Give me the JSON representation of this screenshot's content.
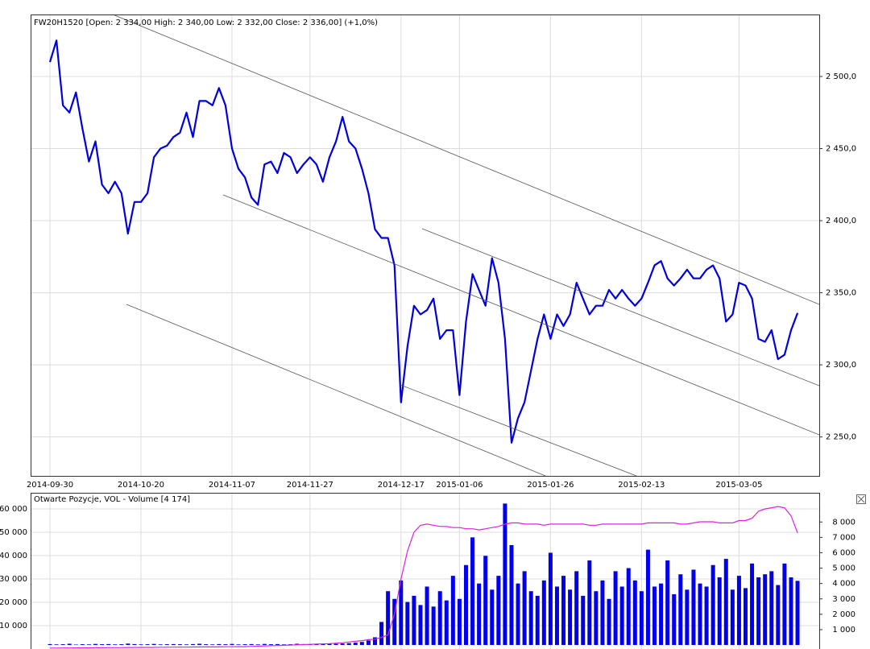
{
  "chart_data": [
    {
      "type": "line",
      "title": "FW20H1520 [Open: 2 334,00  High: 2 340,00  Low: 2 332,00  Close: 2 336,00] (+1,0%)",
      "categories": [
        "2014-09-30",
        null,
        null,
        null,
        null,
        null,
        null,
        null,
        null,
        null,
        null,
        null,
        null,
        null,
        "2014-10-20",
        null,
        null,
        null,
        null,
        null,
        null,
        null,
        null,
        null,
        null,
        null,
        null,
        null,
        "2014-11-07",
        null,
        null,
        null,
        null,
        null,
        null,
        null,
        null,
        null,
        null,
        null,
        "2014-11-27",
        null,
        null,
        null,
        null,
        null,
        null,
        null,
        null,
        null,
        null,
        null,
        null,
        null,
        "2014-12-17",
        null,
        null,
        null,
        null,
        null,
        null,
        null,
        null,
        "2015-01-06",
        null,
        null,
        null,
        null,
        null,
        null,
        null,
        null,
        null,
        null,
        null,
        null,
        null,
        "2015-01-26",
        null,
        null,
        null,
        null,
        null,
        null,
        null,
        null,
        null,
        null,
        null,
        null,
        null,
        "2015-02-13",
        null,
        null,
        null,
        null,
        null,
        null,
        null,
        null,
        null,
        null,
        null,
        null,
        null,
        null,
        "2015-03-05",
        null,
        null,
        null,
        null,
        null,
        null,
        null,
        null,
        null
      ],
      "series": [
        {
          "name": "FW20H1520",
          "color": "#0000dd",
          "values": [
            2510,
            2525,
            2480,
            2475,
            2489,
            2464,
            2441,
            2455,
            2425,
            2419,
            2427,
            2419,
            2391,
            2413,
            2413,
            2419,
            2444,
            2450,
            2452,
            2458,
            2461,
            2475,
            2458,
            2483,
            2483,
            2480,
            2492,
            2480,
            2450,
            2436,
            2430,
            2416,
            2411,
            2439,
            2441,
            2433,
            2447,
            2444,
            2433,
            2439,
            2444,
            2439,
            2427,
            2444,
            2455,
            2472,
            2455,
            2450,
            2436,
            2419,
            2394,
            2388,
            2388,
            2369,
            2274,
            2313,
            2341,
            2335,
            2338,
            2346,
            2318,
            2324,
            2324,
            2279,
            2330,
            2363,
            2352,
            2341,
            2374,
            2357,
            2318,
            2246,
            2263,
            2274,
            2296,
            2318,
            2335,
            2318,
            2335,
            2327,
            2335,
            2357,
            2346,
            2335,
            2341,
            2341,
            2352,
            2346,
            2352,
            2346,
            2341,
            2346,
            2357,
            2369,
            2372,
            2360,
            2355,
            2360,
            2366,
            2360,
            2360,
            2366,
            2369,
            2360,
            2330,
            2335,
            2357,
            2355,
            2346,
            2318,
            2316,
            2324,
            2304,
            2307,
            2324,
            2336
          ]
        }
      ],
      "ylim": [
        2223,
        2543
      ],
      "yticks": [
        {
          "value": 2250,
          "label": "2 250,0"
        },
        {
          "value": 2300,
          "label": "2 300,0"
        },
        {
          "value": 2350,
          "label": "2 350,0"
        },
        {
          "value": 2400,
          "label": "2 400,0"
        },
        {
          "value": 2450,
          "label": "2 450,0"
        },
        {
          "value": 2500,
          "label": "2 500,0"
        }
      ],
      "grid": true
    },
    {
      "type": "bar",
      "title": "Otwarte Pozycje, VOL - Volume [4 174]",
      "series": [
        {
          "name": "Otwarte Pozycje",
          "type": "line",
          "axis": "y",
          "color": "#dd22dd",
          "values": [
            400,
            400,
            450,
            450,
            500,
            500,
            500,
            550,
            550,
            600,
            600,
            600,
            650,
            650,
            700,
            700,
            700,
            750,
            750,
            800,
            800,
            800,
            850,
            850,
            900,
            900,
            900,
            950,
            950,
            1000,
            1000,
            1100,
            1200,
            1300,
            1400,
            1500,
            1600,
            1700,
            1800,
            1900,
            2000,
            2100,
            2200,
            2300,
            2500,
            2700,
            3000,
            3300,
            3600,
            4000,
            4200,
            5000,
            6000,
            15000,
            30000,
            42000,
            50000,
            53000,
            53500,
            53000,
            52500,
            52500,
            52000,
            52000,
            51500,
            51500,
            51000,
            51500,
            52000,
            52500,
            53500,
            54000,
            54000,
            53500,
            53500,
            53500,
            53000,
            53500,
            53500,
            53500,
            53500,
            53500,
            53500,
            53000,
            53000,
            53500,
            53500,
            53500,
            53500,
            53500,
            53500,
            53500,
            54000,
            54000,
            54000,
            54000,
            54000,
            53500,
            53500,
            54000,
            54500,
            54500,
            54500,
            54000,
            54000,
            54000,
            55000,
            55000,
            56000,
            59000,
            60000,
            60500,
            61000,
            60500,
            57000,
            49700
          ]
        },
        {
          "name": "VOL - Volume",
          "type": "bar",
          "axis": "y2",
          "color": "#0000ee",
          "values": [
            60,
            40,
            50,
            80,
            30,
            50,
            40,
            70,
            50,
            60,
            40,
            50,
            90,
            60,
            40,
            50,
            70,
            40,
            50,
            60,
            50,
            40,
            60,
            80,
            50,
            40,
            60,
            50,
            70,
            40,
            50,
            60,
            40,
            70,
            50,
            60,
            40,
            50,
            80,
            60,
            50,
            70,
            60,
            90,
            80,
            100,
            120,
            150,
            200,
            300,
            500,
            1500,
            3500,
            3000,
            4200,
            2800,
            3200,
            2600,
            3800,
            2500,
            3500,
            2900,
            4500,
            3000,
            5200,
            7000,
            4000,
            5800,
            3600,
            4500,
            9200,
            6500,
            4000,
            4800,
            3500,
            3200,
            4200,
            6000,
            3800,
            4500,
            3600,
            4800,
            3200,
            5500,
            3500,
            4200,
            3000,
            4800,
            3800,
            5000,
            4200,
            3500,
            6200,
            3800,
            4000,
            5500,
            3300,
            4600,
            3600,
            4900,
            4000,
            3800,
            5200,
            4400,
            5600,
            3600,
            4500,
            3700,
            5300,
            4400,
            4600,
            4800,
            3900,
            5300,
            4400,
            4174
          ]
        }
      ],
      "ylim": [
        0,
        66900
      ],
      "yticks": [
        {
          "value": 10000,
          "label": "10 000"
        },
        {
          "value": 20000,
          "label": "20 000"
        },
        {
          "value": 30000,
          "label": "30 000"
        },
        {
          "value": 40000,
          "label": "40 000"
        },
        {
          "value": 50000,
          "label": "50 000"
        },
        {
          "value": 60000,
          "label": "60 000"
        }
      ],
      "y2lim": [
        -260,
        9900
      ],
      "y2ticks": [
        {
          "value": 1000,
          "label": "1 000"
        },
        {
          "value": 2000,
          "label": "2 000"
        },
        {
          "value": 3000,
          "label": "3 000"
        },
        {
          "value": 4000,
          "label": "4 000"
        },
        {
          "value": 5000,
          "label": "5 000"
        },
        {
          "value": 6000,
          "label": "6 000"
        },
        {
          "value": 7000,
          "label": "7 000"
        },
        {
          "value": 8000,
          "label": "8 000"
        }
      ],
      "grid": true
    }
  ]
}
